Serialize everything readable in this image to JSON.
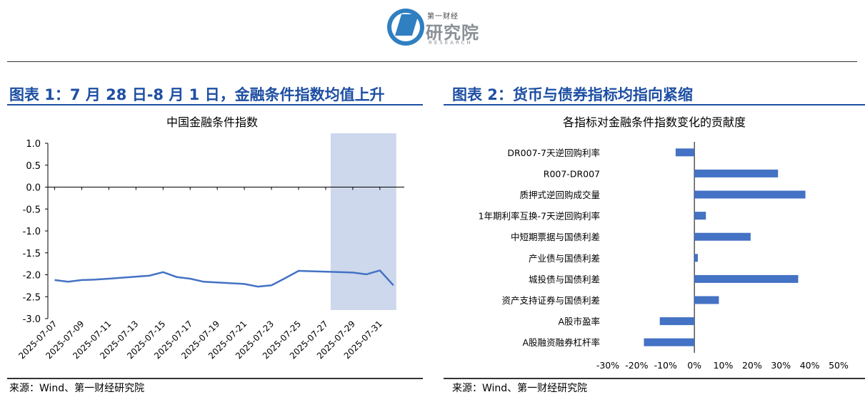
{
  "logo": {
    "cn_small": "第一财经",
    "cn_big": "研究院",
    "en": "RESEARCH"
  },
  "figure1": {
    "heading": "图表 1：7 月 28 日-8 月 1 日，金融条件指数均值上升",
    "source": "来源：Wind、第一财经研究院"
  },
  "figure2": {
    "heading": "图表 2：货币与债券指标均指向紧缩",
    "source": "来源：Wind、第一财经研究院"
  },
  "colors": {
    "line": "#4472c4",
    "bar": "#4472c4",
    "highlight": "#cdd8ec",
    "heading": "#1e4fa3"
  },
  "chart_data": [
    {
      "type": "line",
      "title": "中国金融条件指数",
      "x": [
        "2025-07-07",
        "2025-07-08",
        "2025-07-09",
        "2025-07-10",
        "2025-07-11",
        "2025-07-14",
        "2025-07-15",
        "2025-07-16",
        "2025-07-17",
        "2025-07-18",
        "2025-07-21",
        "2025-07-22",
        "2025-07-23",
        "2025-07-24",
        "2025-07-25",
        "2025-07-28",
        "2025-07-29",
        "2025-07-30",
        "2025-07-31",
        "2025-08-01"
      ],
      "series": [
        {
          "values": [
            -2.12,
            -2.16,
            -2.12,
            -2.11,
            -2.09,
            -2.02,
            -1.94,
            -2.05,
            -2.09,
            -2.16,
            -2.21,
            -2.27,
            -2.24,
            -2.08,
            -1.91,
            -1.94,
            -1.95,
            -1.99,
            -1.9,
            -2.24
          ]
        }
      ],
      "xticks": [
        "2025-07-07",
        "2025-07-09",
        "2025-07-11",
        "2025-07-13",
        "2025-07-15",
        "2025-07-17",
        "2025-07-19",
        "2025-07-21",
        "2025-07-23",
        "2025-07-25",
        "2025-07-27",
        "2025-07-29",
        "2025-07-31"
      ],
      "yticks": [
        "1.0",
        "0.5",
        "0.0",
        "-0.5",
        "-1.0",
        "-1.5",
        "-2.0",
        "-2.5",
        "-3.0"
      ],
      "ylim": [
        -3.0,
        1.0
      ],
      "highlight_range": [
        "2025-07-28",
        "2025-08-01"
      ],
      "grid": false
    },
    {
      "type": "bar",
      "orientation": "horizontal",
      "title": "各指标对金融条件指数变化的贡献度",
      "categories": [
        "DR007-7天逆回购利率",
        "R007-DR007",
        "质押式逆回购成交量",
        "1年期利率互换-7天逆回购利率",
        "中短期票据与国债利差",
        "产业债与国债利差",
        "城投债与国债利差",
        "资产支持证券与国债利差",
        "A股市盈率",
        "A股融资融券杠杆率"
      ],
      "values": [
        -6.5,
        29,
        38.5,
        4,
        19.5,
        1.2,
        36,
        8.5,
        -12,
        -17.5
      ],
      "xticks": [
        "-30%",
        "-20%",
        "-10%",
        "0%",
        "10%",
        "20%",
        "30%",
        "40%",
        "50%"
      ],
      "xlim": [
        -30,
        50
      ],
      "grid": false
    }
  ]
}
